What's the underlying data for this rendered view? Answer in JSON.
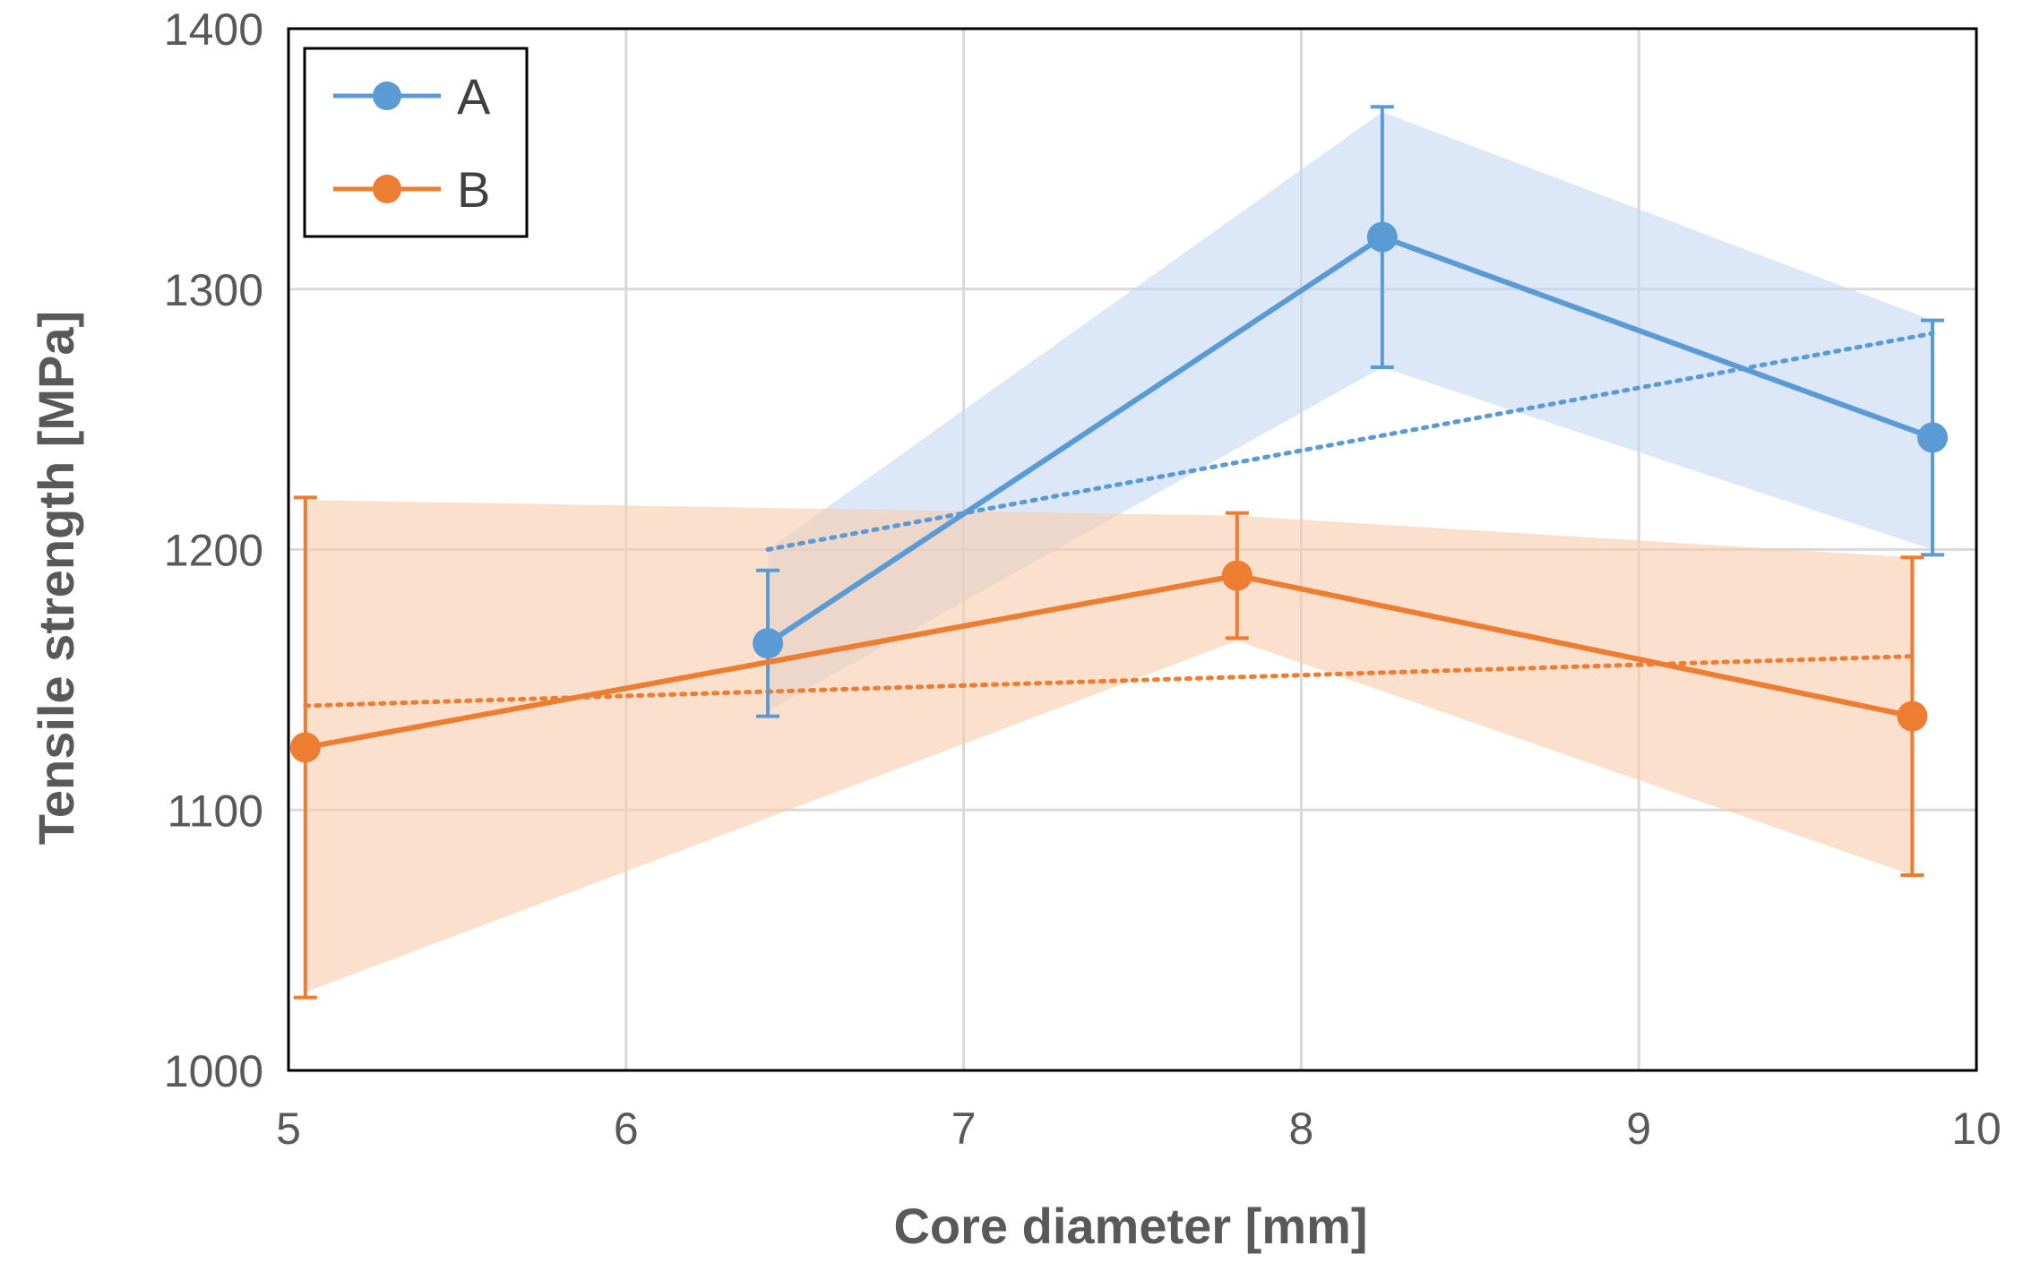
{
  "chart_data": {
    "type": "line",
    "title": "",
    "xlabel": "Core diameter [mm]",
    "ylabel": "Tensile strength [MPa]",
    "xlim": [
      5,
      10
    ],
    "ylim": [
      1000,
      1400
    ],
    "xticks": [
      5,
      6,
      7,
      8,
      9,
      10
    ],
    "yticks": [
      1000,
      1100,
      1200,
      1300,
      1400
    ],
    "xtick_labels": [
      "5",
      "6",
      "7",
      "8",
      "9",
      "10"
    ],
    "ytick_labels": [
      "1000",
      "1100",
      "1200",
      "1300",
      "1400"
    ],
    "grid": true,
    "legend_position": "top-left",
    "series": [
      {
        "name": "A",
        "color": "#5B9BD5",
        "band_color": "#C5D9F1",
        "x": [
          6.42,
          8.24,
          9.87
        ],
        "y": [
          1164,
          1320,
          1243
        ],
        "error": [
          28,
          50,
          45
        ],
        "band_upper": [
          1200,
          1368,
          1288
        ],
        "band_lower": [
          1138,
          1270,
          1200
        ],
        "trend": {
          "x": [
            6.42,
            9.87
          ],
          "y": [
            1200,
            1283
          ]
        }
      },
      {
        "name": "B",
        "color": "#ED7D31",
        "band_color": "#F8CBAD",
        "x": [
          5.05,
          7.81,
          9.81
        ],
        "y": [
          1124,
          1190,
          1136
        ],
        "error": [
          96,
          24,
          61
        ],
        "band_upper": [
          1219,
          1213,
          1197
        ],
        "band_lower": [
          1030,
          1165,
          1075
        ],
        "trend": {
          "x": [
            5.05,
            9.81
          ],
          "y": [
            1140,
            1159
          ]
        }
      }
    ]
  }
}
